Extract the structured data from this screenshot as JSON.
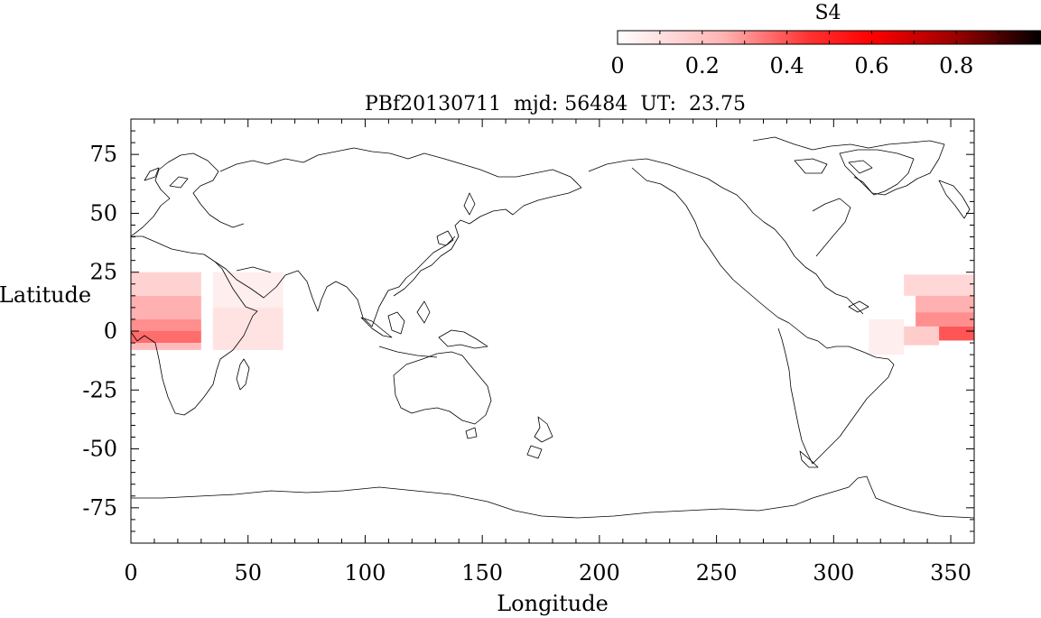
{
  "chart_data": {
    "type": "heatmap",
    "title": "PBf20130711  mjd: 56484  UT:  23.75",
    "xlabel": "Longitude",
    "ylabel": "Latitude",
    "xlim": [
      0,
      360
    ],
    "ylim": [
      -90,
      90
    ],
    "xticks": [
      0,
      50,
      100,
      150,
      200,
      250,
      300,
      350
    ],
    "yticks": [
      75,
      50,
      25,
      0,
      -25,
      -50,
      -75
    ],
    "grid": false,
    "colorbar": {
      "label": "S4",
      "range": [
        0,
        1
      ],
      "ticks": [
        0,
        0.2,
        0.4,
        0.6,
        0.8
      ],
      "colors": [
        "#ffffff",
        "#ff9999",
        "#ff0000",
        "#990000",
        "#000000"
      ],
      "placement": "top-right"
    },
    "cells": [
      {
        "lon": [
          0,
          30
        ],
        "lat": [
          15,
          25
        ],
        "s4": 0.08
      },
      {
        "lon": [
          0,
          30
        ],
        "lat": [
          5,
          15
        ],
        "s4": 0.14
      },
      {
        "lon": [
          0,
          30
        ],
        "lat": [
          0,
          5
        ],
        "s4": 0.2
      },
      {
        "lon": [
          0,
          30
        ],
        "lat": [
          -5,
          0
        ],
        "s4": 0.26
      },
      {
        "lon": [
          0,
          30
        ],
        "lat": [
          -8,
          -5
        ],
        "s4": 0.12
      },
      {
        "lon": [
          35,
          65
        ],
        "lat": [
          10,
          25
        ],
        "s4": 0.03
      },
      {
        "lon": [
          35,
          65
        ],
        "lat": [
          -8,
          10
        ],
        "s4": 0.05
      },
      {
        "lon": [
          330,
          360
        ],
        "lat": [
          15,
          24
        ],
        "s4": 0.07
      },
      {
        "lon": [
          335,
          360
        ],
        "lat": [
          8,
          15
        ],
        "s4": 0.14
      },
      {
        "lon": [
          335,
          360
        ],
        "lat": [
          2,
          8
        ],
        "s4": 0.2
      },
      {
        "lon": [
          335,
          360
        ],
        "lat": [
          -4,
          2
        ],
        "s4": 0.3
      },
      {
        "lon": [
          330,
          345
        ],
        "lat": [
          -6,
          2
        ],
        "s4": 0.09
      },
      {
        "lon": [
          315,
          330
        ],
        "lat": [
          -10,
          5
        ],
        "s4": 0.03
      }
    ],
    "map": "world coastlines"
  }
}
